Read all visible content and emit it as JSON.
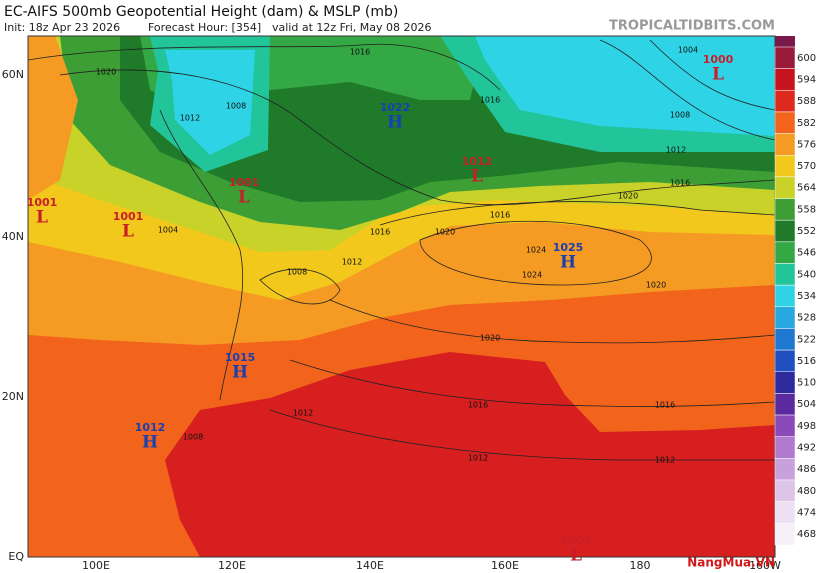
{
  "header": {
    "title": "EC-AIFS 500mb Geopotential Height (dam) & MSLP (mb)",
    "init": "Init: 18z Apr 23 2026",
    "forecast_hour": "Forecast Hour: [354]",
    "valid": "valid at 12z Fri, May 08 2026",
    "site": "TROPICALTIDBITS.COM"
  },
  "lat_labels": [
    "60N",
    "40N",
    "20N",
    "EQ"
  ],
  "lon_labels": [
    "100E",
    "120E",
    "140E",
    "160E",
    "180",
    "160W"
  ],
  "colorbar": [
    {
      "label": "600",
      "color": "#9a1a3a"
    },
    {
      "label": "594",
      "color": "#c8141e"
    },
    {
      "label": "588",
      "color": "#dc2a1e"
    },
    {
      "label": "582",
      "color": "#f2641c"
    },
    {
      "label": "576",
      "color": "#f59a22"
    },
    {
      "label": "570",
      "color": "#f2c81c"
    },
    {
      "label": "564",
      "color": "#c8d228"
    },
    {
      "label": "558",
      "color": "#3c9e34"
    },
    {
      "label": "552",
      "color": "#1f7a2a"
    },
    {
      "label": "546",
      "color": "#34a844"
    },
    {
      "label": "540",
      "color": "#22c49a"
    },
    {
      "label": "534",
      "color": "#2ed4e6"
    },
    {
      "label": "528",
      "color": "#28a8e0"
    },
    {
      "label": "522",
      "color": "#1e78d0"
    },
    {
      "label": "516",
      "color": "#1e4ec0"
    },
    {
      "label": "510",
      "color": "#2e2a9e"
    },
    {
      "label": "504",
      "color": "#5a2a9e"
    },
    {
      "label": "498",
      "color": "#8a4ab8"
    },
    {
      "label": "492",
      "color": "#b07ad0"
    },
    {
      "label": "486",
      "color": "#c8a0dc"
    },
    {
      "label": "480",
      "color": "#dcc4e8"
    },
    {
      "label": "474",
      "color": "#ece0f2"
    },
    {
      "label": "468",
      "color": "#f6f0f8"
    }
  ],
  "systems": [
    {
      "type": "L",
      "pressure": "1000"
    },
    {
      "type": "H",
      "pressure": "1022"
    },
    {
      "type": "L",
      "pressure": "1012"
    },
    {
      "type": "L",
      "pressure": "1001"
    },
    {
      "type": "L",
      "pressure": "1001"
    },
    {
      "type": "L",
      "pressure": "1001"
    },
    {
      "type": "H",
      "pressure": "1025"
    },
    {
      "type": "H",
      "pressure": "1015"
    },
    {
      "type": "H",
      "pressure": "1012"
    },
    {
      "type": "L",
      "pressure": "1005"
    }
  ],
  "isobar_labels": [
    "1016",
    "1020",
    "1012",
    "1008",
    "1004",
    "1016",
    "1008",
    "1012",
    "1016",
    "1020",
    "1020",
    "1024",
    "1024",
    "1020",
    "1016",
    "1020",
    "1016",
    "1016",
    "1012",
    "1012",
    "1012",
    "1008",
    "1008",
    "1016",
    "1012",
    "1004"
  ],
  "watermark": "NangMua.VN"
}
